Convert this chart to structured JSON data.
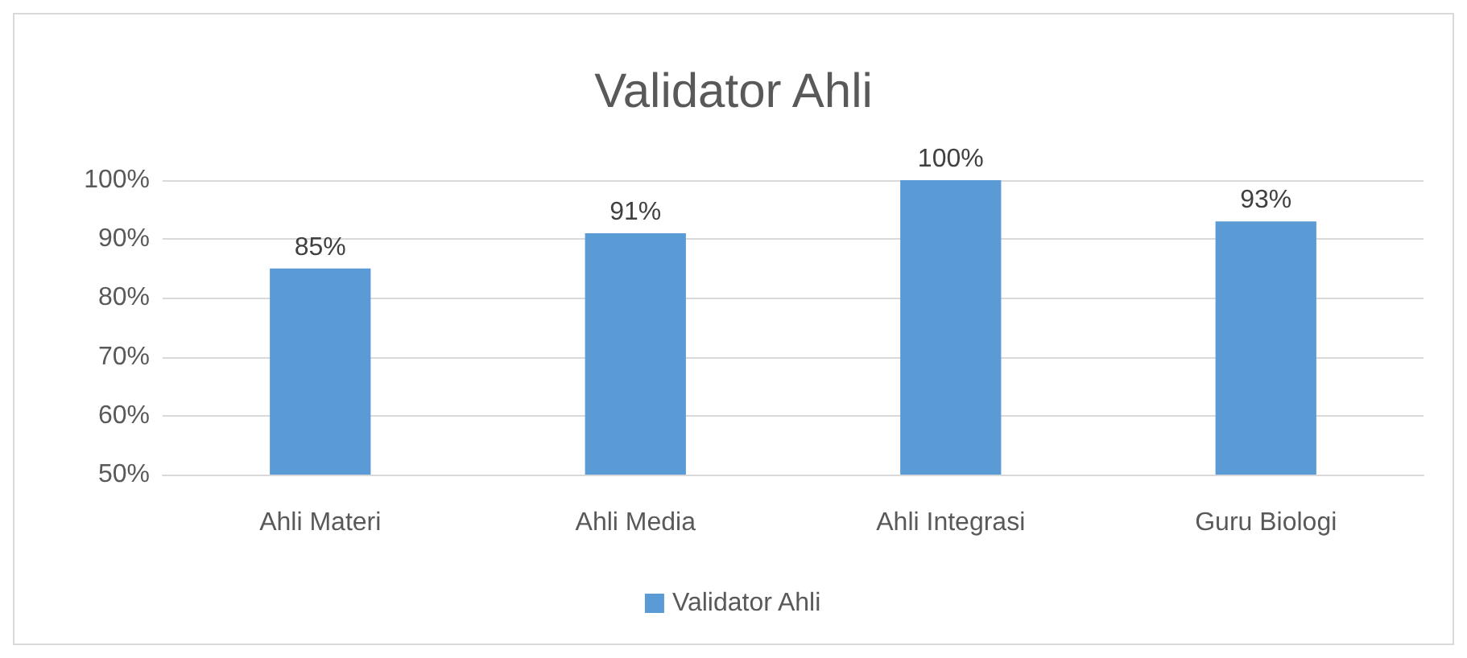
{
  "chart_data": {
    "type": "bar",
    "title": "Validator Ahli",
    "categories": [
      "Ahli Materi",
      "Ahli Media",
      "Ahli Integrasi",
      "Guru Biologi"
    ],
    "series": [
      {
        "name": "Validator Ahli",
        "color": "#5b9bd5",
        "values": [
          85,
          91,
          100,
          93
        ],
        "value_labels": [
          "85%",
          "91%",
          "100%",
          "93%"
        ]
      }
    ],
    "ylim": [
      50,
      100
    ],
    "yticks": [
      {
        "value": 50,
        "label": "50%"
      },
      {
        "value": 60,
        "label": "60%"
      },
      {
        "value": 70,
        "label": "70%"
      },
      {
        "value": 80,
        "label": "80%"
      },
      {
        "value": 90,
        "label": "90%"
      },
      {
        "value": 100,
        "label": "100%"
      }
    ],
    "grid": "y",
    "legend": "bottom"
  }
}
